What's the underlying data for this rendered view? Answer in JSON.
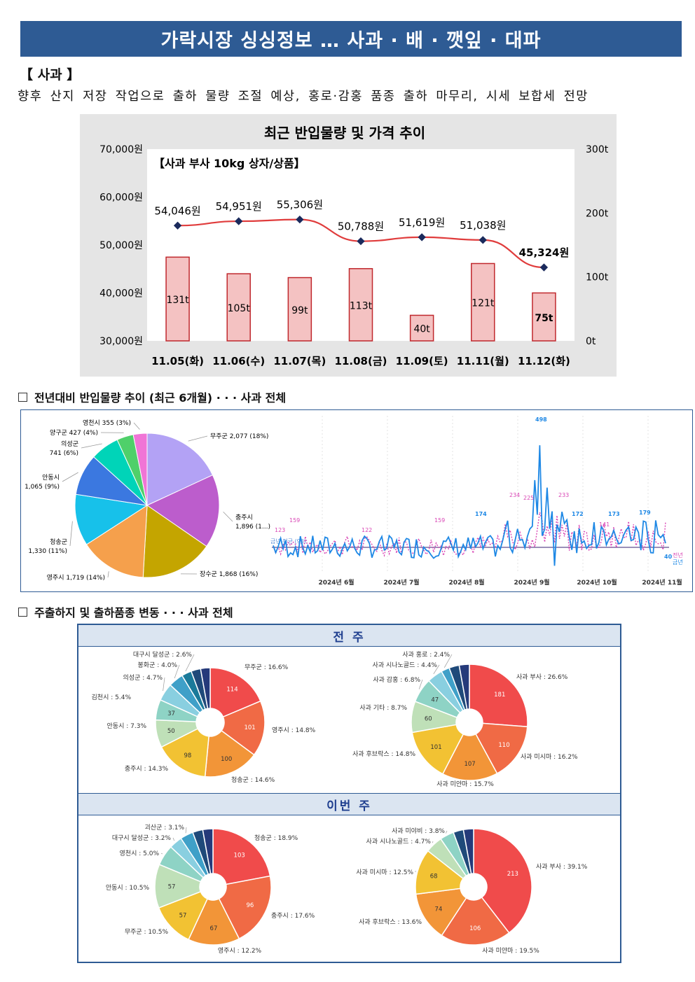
{
  "banner_title": "가락시장 싱싱정보 … 사과 · 배 · 깻잎 · 대파",
  "section_title": "【 사과 】",
  "summary": "향후 산지 저장 작업으로 출하 물량 조절 예상, 홍로·감홍 품종 출하 마무리, 시세 보합세 전망",
  "chart1": {
    "title": "최근 반입물량 및 가격 추이",
    "inner_label": "【사과 부사 10kg 상자/상품】",
    "left_axis_ticks": [
      "70,000원",
      "60,000원",
      "50,000원",
      "40,000원",
      "30,000원"
    ],
    "right_axis_ticks": [
      "300t",
      "200t",
      "100t",
      "0t"
    ],
    "colors": {
      "bar_fill": "#f4c2c2",
      "bar_stroke": "#c0282d",
      "line": "#e03c3c",
      "marker": "#1a2a5c"
    }
  },
  "chart_data": [
    {
      "type": "bar+line",
      "title": "최근 반입물량 및 가격 추이",
      "categories": [
        "11.05(화)",
        "11.06(수)",
        "11.07(목)",
        "11.08(금)",
        "11.09(토)",
        "11.11(월)",
        "11.12(화)"
      ],
      "series": [
        {
          "name": "반입물량",
          "values": [
            131,
            105,
            99,
            113,
            40,
            121,
            75
          ],
          "labels": [
            "131t",
            "105t",
            "99t",
            "113t",
            "40t",
            "121t",
            "75t"
          ],
          "axis": "right"
        },
        {
          "name": "가격",
          "values": [
            54046,
            54951,
            55306,
            50788,
            51619,
            51038,
            45324
          ],
          "labels": [
            "54,046원",
            "54,951원",
            "55,306원",
            "50,788원",
            "51,619원",
            "51,038원",
            "45,324원"
          ],
          "axis": "left"
        }
      ],
      "ylim_left": [
        30000,
        70000
      ],
      "ylim_right": [
        0,
        300
      ]
    },
    {
      "type": "pie",
      "labels": [
        "무주군 2,077 (18%)",
        "충주시 1,896 (1...)",
        "장수군 1,868 (16%)",
        "영주시 1,719 (14%)",
        "청송군 1,330 (11%)",
        "안동시 1,065 (9%)",
        "의성군 741 (6%)",
        "양구군 427 (4%)",
        "영천시 355 (3%)"
      ],
      "values": [
        2077,
        1896,
        1868,
        1719,
        1330,
        1065,
        741,
        427,
        355
      ],
      "colors": [
        "#b3a2f5",
        "#bc5dcc",
        "#c4a500",
        "#f5a04c",
        "#17c1ea",
        "#3b78e0",
        "#00d4b8",
        "#4fd06a",
        "#f075d6"
      ]
    },
    {
      "type": "line",
      "x_ticks": [
        "2024년 6월",
        "2024년 7월",
        "2024년 8월",
        "2024년 9월",
        "2024년 10월",
        "2024년 11월"
      ],
      "series": [
        {
          "name": "전년",
          "color": "#d946b5"
        },
        {
          "name": "금년",
          "color": "#1e88e5"
        }
      ],
      "annotations_prev": [
        "123",
        "159",
        "122",
        "159",
        "234",
        "225",
        "233",
        "141"
      ],
      "annotations_curr": [
        "174",
        "498",
        "172",
        "173",
        "179",
        "40"
      ],
      "left_value_label": "금년 평균 (93)"
    },
    {
      "type": "pie",
      "group": "전 주",
      "labels": [
        "무주군 : 16.6%",
        "영주시 : 14.8%",
        "청송군 : 14.6%",
        "충주시 : 14.3%",
        "안동시 : 7.3%",
        "김천시 : 5.4%",
        "의성군 : 4.7%",
        "봉화군 : 4.0%",
        "대구시 달성군 : 2.6%"
      ],
      "values": [
        114,
        101,
        100,
        98,
        50,
        37,
        32,
        27,
        18
      ],
      "inner_labels": [
        "114",
        "101",
        "100",
        "98",
        "50",
        "37",
        "",
        "",
        ""
      ]
    },
    {
      "type": "pie",
      "group": "전 주",
      "labels": [
        "사과 부사 : 26.6%",
        "사과 미시마 : 16.2%",
        "사과 미얀마 : 15.7%",
        "사과 후브락스 : 14.8%",
        "사과 기타 : 8.7%",
        "사과 감홍 : 6.8%",
        "사과 시나노골드 : 4.4%",
        "사과 홍로 : 2.4%"
      ],
      "values": [
        181,
        110,
        107,
        101,
        60,
        47,
        30,
        16
      ],
      "inner_labels": [
        "181",
        "110",
        "107",
        "101",
        "60",
        "47",
        "",
        ""
      ]
    },
    {
      "type": "pie",
      "group": "이번 주",
      "labels": [
        "청송군 : 18.9%",
        "충주시 : 17.6%",
        "영주시 : 12.2%",
        "무주군 : 10.5%",
        "안동시 : 10.5%",
        "영천시 : 5.0%",
        "대구시 달성군 : 3.2%",
        "괴산군 : 3.1%"
      ],
      "values": [
        103,
        96,
        67,
        57,
        57,
        27,
        17,
        17
      ],
      "inner_labels": [
        "103",
        "96",
        "67",
        "57",
        "57",
        "",
        "",
        ""
      ]
    },
    {
      "type": "pie",
      "group": "이번 주",
      "labels": [
        "사과 부사 : 39.1%",
        "사과 미얀마 : 19.5%",
        "사과 후브락스 : 13.6%",
        "사과 미시마 : 12.5%",
        "사과 시나노골드 : 4.7%",
        "사과 미야비 : 3.8%"
      ],
      "values": [
        213,
        106,
        74,
        68,
        26,
        21
      ],
      "inner_labels": [
        "213",
        "106",
        "74",
        "68",
        "",
        ""
      ]
    }
  ],
  "sub2_title": "전년대비 반입물량 추이 (최근 6개월) · · · 사과 전체",
  "sub3_title": "주출하지 및 출하품종 변동 · · · 사과 전체",
  "band_prev": "전 주",
  "band_this": "이번 주",
  "donut_colors": [
    "#f04b4b",
    "#f06a45",
    "#f29538",
    "#f2c233",
    "#bfe0b8",
    "#8ed3c5",
    "#89cfe0",
    "#3fa0c8",
    "#1a7a9a",
    "#1f4a7a",
    "#253a7a"
  ]
}
